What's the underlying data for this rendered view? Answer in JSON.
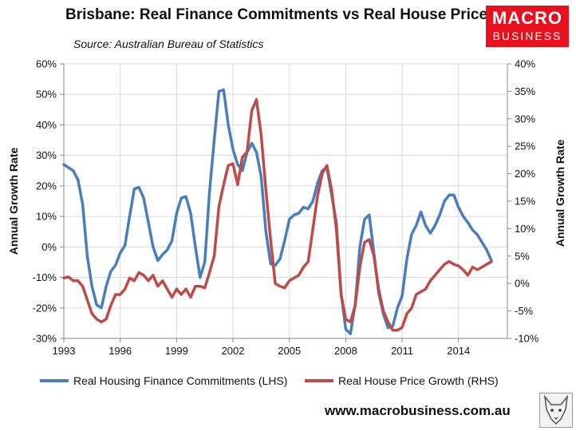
{
  "title": "Brisbane: Real Finance Commitments vs Real House Prices",
  "subtitle": "Source: Australian Bureau of Statistics",
  "logo": {
    "line1": "MACRO",
    "line2": "BUSINESS",
    "color": "#e8101d"
  },
  "website": "www.macrobusiness.com.au",
  "chart_data": {
    "type": "line",
    "y_left": {
      "label": "Annual Growth Rate",
      "min": -30,
      "max": 60,
      "step": 10,
      "ticks": [
        "-30%",
        "-20%",
        "-10%",
        "0%",
        "10%",
        "20%",
        "30%",
        "40%",
        "50%",
        "60%"
      ]
    },
    "y_right": {
      "label": "Annual Growth Rate",
      "min": -10,
      "max": 40,
      "step": 5,
      "ticks": [
        "-10%",
        "-5%",
        "0%",
        "5%",
        "10%",
        "15%",
        "20%",
        "25%",
        "30%",
        "35%",
        "40%"
      ]
    },
    "x_range": [
      1993,
      2016.6
    ],
    "x_ticks": [
      {
        "value": 1993,
        "label": "1993"
      },
      {
        "value": 1996,
        "label": "1996"
      },
      {
        "value": 1999,
        "label": "1999"
      },
      {
        "value": 2002,
        "label": "2002"
      },
      {
        "value": 2005,
        "label": "2005"
      },
      {
        "value": 2008,
        "label": "2008"
      },
      {
        "value": 2011,
        "label": "2011"
      },
      {
        "value": 2014,
        "label": "2014"
      }
    ],
    "grid": true,
    "series": [
      {
        "name": "Real Housing Finance Commitments (LHS)",
        "axis": "left",
        "color": "#4a7ebb",
        "points": [
          [
            1993.0,
            27
          ],
          [
            1993.25,
            26
          ],
          [
            1993.5,
            25
          ],
          [
            1993.75,
            22
          ],
          [
            1994.0,
            14
          ],
          [
            1994.25,
            -3
          ],
          [
            1994.5,
            -13
          ],
          [
            1994.75,
            -19
          ],
          [
            1995.0,
            -20
          ],
          [
            1995.25,
            -13
          ],
          [
            1995.5,
            -8
          ],
          [
            1995.75,
            -6
          ],
          [
            1996.0,
            -2
          ],
          [
            1996.25,
            0.5
          ],
          [
            1996.5,
            10
          ],
          [
            1996.75,
            19
          ],
          [
            1997.0,
            19.5
          ],
          [
            1997.25,
            16
          ],
          [
            1997.5,
            8
          ],
          [
            1997.75,
            0
          ],
          [
            1998.0,
            -4.5
          ],
          [
            1998.25,
            -2.5
          ],
          [
            1998.5,
            -1
          ],
          [
            1998.75,
            2
          ],
          [
            1999.0,
            11
          ],
          [
            1999.25,
            16
          ],
          [
            1999.5,
            16.5
          ],
          [
            1999.75,
            11
          ],
          [
            2000.0,
            0
          ],
          [
            2000.25,
            -10
          ],
          [
            2000.5,
            -5
          ],
          [
            2000.75,
            18
          ],
          [
            2001.0,
            35
          ],
          [
            2001.25,
            51
          ],
          [
            2001.5,
            51.5
          ],
          [
            2001.75,
            40
          ],
          [
            2002.0,
            32
          ],
          [
            2002.25,
            27
          ],
          [
            2002.5,
            25
          ],
          [
            2002.75,
            31
          ],
          [
            2003.0,
            34
          ],
          [
            2003.25,
            31
          ],
          [
            2003.5,
            23
          ],
          [
            2003.75,
            5
          ],
          [
            2004.0,
            -5.5
          ],
          [
            2004.25,
            -6
          ],
          [
            2004.5,
            -4
          ],
          [
            2004.75,
            2
          ],
          [
            2005.0,
            9
          ],
          [
            2005.25,
            10.5
          ],
          [
            2005.5,
            11
          ],
          [
            2005.75,
            13
          ],
          [
            2006.0,
            12.5
          ],
          [
            2006.25,
            15
          ],
          [
            2006.5,
            21
          ],
          [
            2006.75,
            25
          ],
          [
            2007.0,
            26
          ],
          [
            2007.25,
            17
          ],
          [
            2007.5,
            8
          ],
          [
            2007.75,
            -15
          ],
          [
            2008.0,
            -27
          ],
          [
            2008.25,
            -28.5
          ],
          [
            2008.5,
            -19
          ],
          [
            2008.75,
            0
          ],
          [
            2009.0,
            9
          ],
          [
            2009.25,
            10.5
          ],
          [
            2009.5,
            -2
          ],
          [
            2009.75,
            -15
          ],
          [
            2010.0,
            -22
          ],
          [
            2010.25,
            -26.5
          ],
          [
            2010.5,
            -26
          ],
          [
            2010.75,
            -20
          ],
          [
            2011.0,
            -16
          ],
          [
            2011.25,
            -4
          ],
          [
            2011.5,
            4
          ],
          [
            2011.75,
            7
          ],
          [
            2012.0,
            11.5
          ],
          [
            2012.25,
            7
          ],
          [
            2012.5,
            4.5
          ],
          [
            2012.75,
            7
          ],
          [
            2013.0,
            10.5
          ],
          [
            2013.25,
            15
          ],
          [
            2013.5,
            17
          ],
          [
            2013.75,
            17
          ],
          [
            2014.0,
            13
          ],
          [
            2014.25,
            10
          ],
          [
            2014.5,
            8
          ],
          [
            2014.75,
            5.5
          ],
          [
            2015.0,
            4
          ],
          [
            2015.25,
            1.5
          ],
          [
            2015.5,
            -1
          ],
          [
            2015.75,
            -4.5
          ]
        ]
      },
      {
        "name": "Real House Price Growth (RHS)",
        "axis": "right",
        "color": "#be4b48",
        "points": [
          [
            1993.0,
            1
          ],
          [
            1993.25,
            1.2
          ],
          [
            1993.5,
            0.5
          ],
          [
            1993.75,
            0.5
          ],
          [
            1994.0,
            -0.5
          ],
          [
            1994.25,
            -3
          ],
          [
            1994.5,
            -5.5
          ],
          [
            1994.75,
            -6.5
          ],
          [
            1995.0,
            -7
          ],
          [
            1995.25,
            -6.5
          ],
          [
            1995.5,
            -4
          ],
          [
            1995.75,
            -2
          ],
          [
            1996.0,
            -2
          ],
          [
            1996.25,
            -1
          ],
          [
            1996.5,
            1
          ],
          [
            1996.75,
            0.5
          ],
          [
            1997.0,
            2
          ],
          [
            1997.25,
            1.5
          ],
          [
            1997.5,
            0.5
          ],
          [
            1997.75,
            1.5
          ],
          [
            1998.0,
            -0.5
          ],
          [
            1998.25,
            0.5
          ],
          [
            1998.5,
            -1
          ],
          [
            1998.75,
            -2.5
          ],
          [
            1999.0,
            -1
          ],
          [
            1999.25,
            -2
          ],
          [
            1999.5,
            -1
          ],
          [
            1999.75,
            -2.5
          ],
          [
            2000.0,
            -0.5
          ],
          [
            2000.25,
            -0.5
          ],
          [
            2000.5,
            -0.8
          ],
          [
            2000.75,
            2
          ],
          [
            2001.0,
            5
          ],
          [
            2001.25,
            14
          ],
          [
            2001.5,
            18
          ],
          [
            2001.75,
            21.5
          ],
          [
            2002.0,
            21.8
          ],
          [
            2002.25,
            18
          ],
          [
            2002.5,
            23
          ],
          [
            2002.75,
            24
          ],
          [
            2003.0,
            31.5
          ],
          [
            2003.25,
            33.5
          ],
          [
            2003.5,
            27
          ],
          [
            2003.75,
            17
          ],
          [
            2004.0,
            8
          ],
          [
            2004.25,
            0
          ],
          [
            2004.5,
            -0.5
          ],
          [
            2004.75,
            -0.8
          ],
          [
            2005.0,
            0.5
          ],
          [
            2005.25,
            1
          ],
          [
            2005.5,
            1.5
          ],
          [
            2005.75,
            3
          ],
          [
            2006.0,
            4
          ],
          [
            2006.25,
            10
          ],
          [
            2006.5,
            16
          ],
          [
            2006.75,
            20
          ],
          [
            2007.0,
            21.5
          ],
          [
            2007.25,
            17
          ],
          [
            2007.5,
            10
          ],
          [
            2007.75,
            -2
          ],
          [
            2008.0,
            -6.5
          ],
          [
            2008.25,
            -7
          ],
          [
            2008.5,
            -4
          ],
          [
            2008.75,
            3
          ],
          [
            2009.0,
            7.5
          ],
          [
            2009.25,
            8
          ],
          [
            2009.5,
            5
          ],
          [
            2009.75,
            -1
          ],
          [
            2010.0,
            -5
          ],
          [
            2010.25,
            -7
          ],
          [
            2010.5,
            -8.5
          ],
          [
            2010.75,
            -8.5
          ],
          [
            2011.0,
            -8
          ],
          [
            2011.25,
            -5.5
          ],
          [
            2011.5,
            -4.5
          ],
          [
            2011.75,
            -2
          ],
          [
            2012.0,
            -1.5
          ],
          [
            2012.25,
            -1
          ],
          [
            2012.5,
            0.5
          ],
          [
            2012.75,
            1.5
          ],
          [
            2013.0,
            2.5
          ],
          [
            2013.25,
            3.5
          ],
          [
            2013.5,
            4
          ],
          [
            2013.75,
            3.5
          ],
          [
            2014.0,
            3.2
          ],
          [
            2014.25,
            2.5
          ],
          [
            2014.5,
            1.5
          ],
          [
            2014.75,
            3
          ],
          [
            2015.0,
            2.5
          ],
          [
            2015.25,
            3
          ],
          [
            2015.5,
            3.5
          ],
          [
            2015.75,
            4
          ]
        ]
      }
    ]
  }
}
